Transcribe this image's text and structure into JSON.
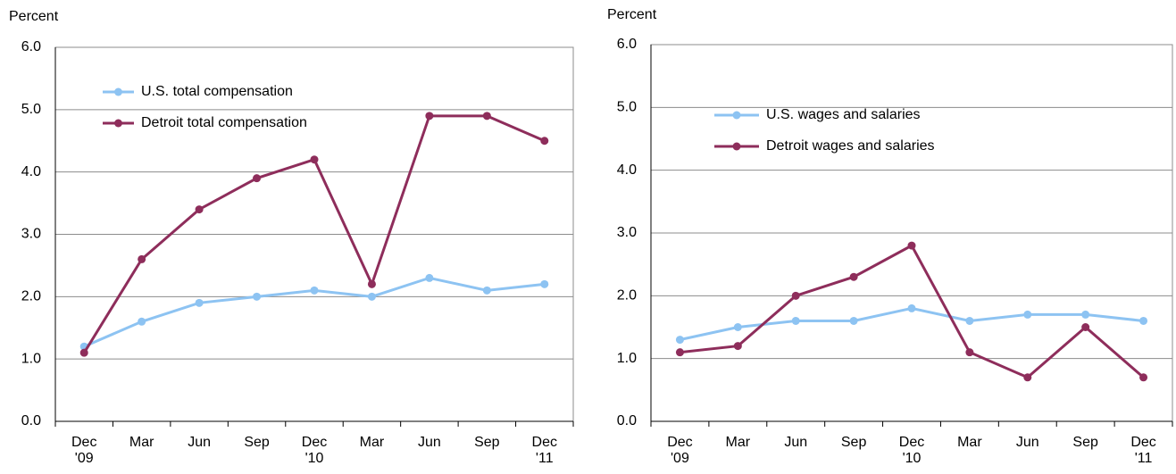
{
  "chart_data": [
    {
      "type": "line",
      "y_label": "Percent",
      "categories": [
        "Dec\n'09",
        "Mar",
        "Jun",
        "Sep",
        "Dec\n'10",
        "Mar",
        "Jun",
        "Sep",
        "Dec\n'11"
      ],
      "series": [
        {
          "name": "U.S. total compensation",
          "color": "#8dc3f2",
          "values": [
            1.2,
            1.6,
            1.9,
            2.0,
            2.1,
            2.0,
            2.3,
            2.1,
            2.2
          ]
        },
        {
          "name": "Detroit total compensation",
          "color": "#8e2d5b",
          "values": [
            1.1,
            2.6,
            3.4,
            3.9,
            4.2,
            2.2,
            4.9,
            4.9,
            4.5
          ]
        }
      ],
      "ylim": [
        0,
        6
      ],
      "yticks": [
        {
          "value": 0,
          "label": "0.0"
        },
        {
          "value": 1,
          "label": "1.0"
        },
        {
          "value": 2,
          "label": "2.0"
        },
        {
          "value": 3,
          "label": "3.0"
        },
        {
          "value": 4,
          "label": "4.0"
        },
        {
          "value": 5,
          "label": "5.0"
        },
        {
          "value": 6,
          "label": "6.0"
        }
      ],
      "grid": true
    },
    {
      "type": "line",
      "y_label": "Percent",
      "categories": [
        "Dec\n'09",
        "Mar",
        "Jun",
        "Sep",
        "Dec\n'10",
        "Mar",
        "Jun",
        "Sep",
        "Dec\n'11"
      ],
      "series": [
        {
          "name": "U.S. wages and salaries",
          "color": "#8dc3f2",
          "values": [
            1.3,
            1.5,
            1.6,
            1.6,
            1.8,
            1.6,
            1.7,
            1.7,
            1.6
          ]
        },
        {
          "name": "Detroit wages and salaries",
          "color": "#8e2d5b",
          "values": [
            1.1,
            1.2,
            2.0,
            2.3,
            2.8,
            1.1,
            0.7,
            1.5,
            0.7
          ]
        }
      ],
      "ylim": [
        0,
        6
      ],
      "yticks": [
        {
          "value": 0,
          "label": "0.0"
        },
        {
          "value": 1,
          "label": "1.0"
        },
        {
          "value": 2,
          "label": "2.0"
        },
        {
          "value": 3,
          "label": "3.0"
        },
        {
          "value": 4,
          "label": "4.0"
        },
        {
          "value": 5,
          "label": "5.0"
        },
        {
          "value": 6,
          "label": "6.0"
        }
      ],
      "grid": true
    }
  ]
}
